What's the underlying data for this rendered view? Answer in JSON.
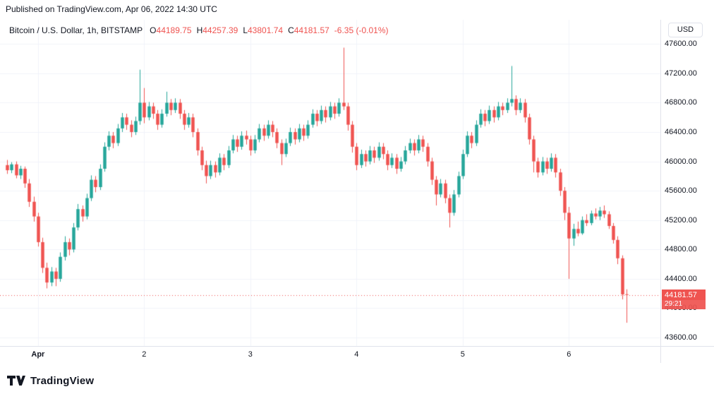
{
  "header": {
    "published": "Published on TradingView.com, Apr 06, 2022 14:30 UTC"
  },
  "legend": {
    "symbol": "Bitcoin / U.S. Dollar, 1h, BITSTAMP",
    "ohlc": [
      {
        "label": "O",
        "value": "44189.75"
      },
      {
        "label": "H",
        "value": "44257.39"
      },
      {
        "label": "L",
        "value": "43801.74"
      },
      {
        "label": "C",
        "value": "44181.57"
      }
    ],
    "change": "-6.35 (-0.01%)"
  },
  "price_scale": {
    "currency": "USD",
    "last_price_label": "44181.57",
    "countdown": "29:21"
  },
  "footer": {
    "brand": "TradingView"
  },
  "colors": {
    "up": "#26a69a",
    "down": "#ef5350",
    "grid": "#f0f3fa",
    "axis_text": "#131722",
    "last_price": "#ef5350"
  },
  "chart_data": {
    "type": "candlestick",
    "title": "Bitcoin / U.S. Dollar",
    "exchange": "BITSTAMP",
    "interval": "1h",
    "ylim": [
      43485,
      47930
    ],
    "grid": true,
    "price_ticks": [
      47600,
      47200,
      46800,
      46400,
      46000,
      45600,
      45200,
      44800,
      44400,
      44000,
      43600
    ],
    "days": [
      {
        "index": 7,
        "label": "Apr",
        "bold": true
      },
      {
        "index": 31,
        "label": "2"
      },
      {
        "index": 55,
        "label": "3"
      },
      {
        "index": 79,
        "label": "4"
      },
      {
        "index": 103,
        "label": "5"
      },
      {
        "index": 127,
        "label": "6"
      }
    ],
    "last": {
      "o": 44189.75,
      "h": 44257.39,
      "l": 43801.74,
      "c": 44181.57,
      "change": -6.35,
      "change_pct": -0.01
    },
    "last_price": 44181.57,
    "countdown": "29:21",
    "candles": [
      [
        45950,
        46020,
        45830,
        45880
      ],
      [
        45880,
        45990,
        45840,
        45960
      ],
      [
        45960,
        46000,
        45770,
        45810
      ],
      [
        45810,
        45940,
        45760,
        45900
      ],
      [
        45900,
        45930,
        45640,
        45700
      ],
      [
        45700,
        45760,
        45380,
        45450
      ],
      [
        45450,
        45520,
        45180,
        45250
      ],
      [
        45250,
        45300,
        44840,
        44900
      ],
      [
        44900,
        44960,
        44480,
        44550
      ],
      [
        44550,
        44620,
        44270,
        44350
      ],
      [
        44350,
        44560,
        44300,
        44500
      ],
      [
        44500,
        44550,
        44300,
        44400
      ],
      [
        44400,
        44760,
        44360,
        44700
      ],
      [
        44700,
        44980,
        44650,
        44900
      ],
      [
        44900,
        44950,
        44720,
        44800
      ],
      [
        44800,
        45160,
        44760,
        45100
      ],
      [
        45100,
        45420,
        45060,
        45350
      ],
      [
        45350,
        45400,
        45180,
        45250
      ],
      [
        45250,
        45560,
        45210,
        45500
      ],
      [
        45500,
        45810,
        45460,
        45750
      ],
      [
        45750,
        45800,
        45580,
        45650
      ],
      [
        45650,
        45960,
        45610,
        45900
      ],
      [
        45900,
        46260,
        45860,
        46200
      ],
      [
        46200,
        46410,
        46150,
        46350
      ],
      [
        46350,
        46400,
        46180,
        46250
      ],
      [
        46250,
        46510,
        46210,
        46450
      ],
      [
        46450,
        46660,
        46400,
        46600
      ],
      [
        46600,
        46650,
        46430,
        46500
      ],
      [
        46500,
        46560,
        46330,
        46400
      ],
      [
        46400,
        46610,
        46360,
        46550
      ],
      [
        46550,
        47250,
        46500,
        46800
      ],
      [
        46800,
        47000,
        46520,
        46600
      ],
      [
        46600,
        46810,
        46560,
        46750
      ],
      [
        46750,
        46800,
        46580,
        46650
      ],
      [
        46650,
        46700,
        46430,
        46500
      ],
      [
        46500,
        46710,
        46460,
        46650
      ],
      [
        46650,
        46950,
        46610,
        46800
      ],
      [
        46800,
        46850,
        46630,
        46700
      ],
      [
        46700,
        46860,
        46660,
        46800
      ],
      [
        46800,
        46850,
        46580,
        46650
      ],
      [
        46650,
        46700,
        46430,
        46500
      ],
      [
        46500,
        46660,
        46460,
        46600
      ],
      [
        46600,
        46650,
        46330,
        46400
      ],
      [
        46400,
        46450,
        46080,
        46150
      ],
      [
        46150,
        46200,
        45880,
        45950
      ],
      [
        45950,
        46010,
        45700,
        45800
      ],
      [
        45800,
        46010,
        45760,
        45950
      ],
      [
        45950,
        46000,
        45780,
        45850
      ],
      [
        45850,
        46110,
        45810,
        46050
      ],
      [
        46050,
        46100,
        45880,
        45950
      ],
      [
        45950,
        46210,
        45910,
        46150
      ],
      [
        46150,
        46360,
        46110,
        46300
      ],
      [
        46300,
        46350,
        46130,
        46200
      ],
      [
        46200,
        46410,
        46160,
        46350
      ],
      [
        46350,
        46420,
        46230,
        46300
      ],
      [
        46300,
        46350,
        46080,
        46150
      ],
      [
        46150,
        46360,
        46110,
        46300
      ],
      [
        46300,
        46510,
        46260,
        46450
      ],
      [
        46450,
        46500,
        46280,
        46350
      ],
      [
        46350,
        46560,
        46310,
        46500
      ],
      [
        46500,
        46550,
        46330,
        46400
      ],
      [
        46400,
        46450,
        46180,
        46250
      ],
      [
        46250,
        46300,
        45950,
        46100
      ],
      [
        46100,
        46310,
        46060,
        46250
      ],
      [
        46250,
        46460,
        46210,
        46400
      ],
      [
        46400,
        46450,
        46230,
        46300
      ],
      [
        46300,
        46510,
        46260,
        46450
      ],
      [
        46450,
        46500,
        46280,
        46350
      ],
      [
        46350,
        46560,
        46310,
        46500
      ],
      [
        46500,
        46710,
        46460,
        46650
      ],
      [
        46650,
        46700,
        46480,
        46550
      ],
      [
        46550,
        46760,
        46510,
        46700
      ],
      [
        46700,
        46750,
        46530,
        46600
      ],
      [
        46600,
        46810,
        46560,
        46750
      ],
      [
        46750,
        46800,
        46580,
        46650
      ],
      [
        46650,
        46860,
        46610,
        46800
      ],
      [
        46800,
        47550,
        46700,
        46750
      ],
      [
        46750,
        46800,
        46420,
        46500
      ],
      [
        46500,
        46550,
        46120,
        46200
      ],
      [
        46200,
        46250,
        45880,
        45950
      ],
      [
        45950,
        46160,
        45910,
        46100
      ],
      [
        46100,
        46150,
        45930,
        46000
      ],
      [
        46000,
        46210,
        45960,
        46150
      ],
      [
        46150,
        46200,
        45980,
        46050
      ],
      [
        46050,
        46260,
        46010,
        46200
      ],
      [
        46200,
        46250,
        46030,
        46100
      ],
      [
        46100,
        46150,
        45880,
        45950
      ],
      [
        45950,
        46110,
        45910,
        46050
      ],
      [
        46050,
        46100,
        45830,
        45900
      ],
      [
        45900,
        46060,
        45860,
        46000
      ],
      [
        46000,
        46210,
        45960,
        46150
      ],
      [
        46150,
        46310,
        46110,
        46250
      ],
      [
        46250,
        46300,
        46080,
        46150
      ],
      [
        46150,
        46360,
        46110,
        46300
      ],
      [
        46300,
        46350,
        46130,
        46200
      ],
      [
        46200,
        46250,
        45930,
        46000
      ],
      [
        46000,
        46050,
        45680,
        45750
      ],
      [
        45750,
        45800,
        45400,
        45550
      ],
      [
        45550,
        45760,
        45510,
        45700
      ],
      [
        45700,
        45750,
        45430,
        45500
      ],
      [
        45500,
        45550,
        45100,
        45300
      ],
      [
        45300,
        45610,
        45260,
        45550
      ],
      [
        45550,
        45860,
        45510,
        45800
      ],
      [
        45800,
        46160,
        45760,
        46100
      ],
      [
        46100,
        46410,
        46060,
        46350
      ],
      [
        46350,
        46400,
        46180,
        46250
      ],
      [
        46250,
        46560,
        46210,
        46500
      ],
      [
        46500,
        46710,
        46460,
        46650
      ],
      [
        46650,
        46700,
        46480,
        46550
      ],
      [
        46550,
        46760,
        46510,
        46700
      ],
      [
        46700,
        46750,
        46530,
        46600
      ],
      [
        46600,
        46810,
        46560,
        46750
      ],
      [
        46750,
        46800,
        46630,
        46700
      ],
      [
        46700,
        46860,
        46660,
        46800
      ],
      [
        46800,
        47300,
        46750,
        46850
      ],
      [
        46850,
        46900,
        46630,
        46700
      ],
      [
        46700,
        46860,
        46660,
        46800
      ],
      [
        46800,
        46850,
        46530,
        46600
      ],
      [
        46600,
        46650,
        46230,
        46300
      ],
      [
        46300,
        46350,
        45850,
        46000
      ],
      [
        46000,
        46050,
        45780,
        45850
      ],
      [
        45850,
        46060,
        45810,
        46000
      ],
      [
        46000,
        46050,
        45830,
        45900
      ],
      [
        45900,
        46110,
        45860,
        46050
      ],
      [
        46050,
        46100,
        45780,
        45850
      ],
      [
        45850,
        45900,
        45530,
        45600
      ],
      [
        45600,
        45650,
        45200,
        45300
      ],
      [
        45300,
        45380,
        44400,
        44950
      ],
      [
        44950,
        45150,
        44850,
        45080
      ],
      [
        45080,
        45180,
        44980,
        45020
      ],
      [
        45020,
        45250,
        45000,
        45200
      ],
      [
        45200,
        45280,
        45120,
        45160
      ],
      [
        45160,
        45330,
        45130,
        45290
      ],
      [
        45290,
        45360,
        45210,
        45250
      ],
      [
        45250,
        45380,
        45200,
        45330
      ],
      [
        45330,
        45400,
        45230,
        45280
      ],
      [
        45280,
        45320,
        45080,
        45120
      ],
      [
        45120,
        45160,
        44880,
        44930
      ],
      [
        44930,
        44980,
        44600,
        44680
      ],
      [
        44680,
        44720,
        44120,
        44188
      ],
      [
        44189.75,
        44257.39,
        43801.74,
        44181.57
      ]
    ]
  }
}
